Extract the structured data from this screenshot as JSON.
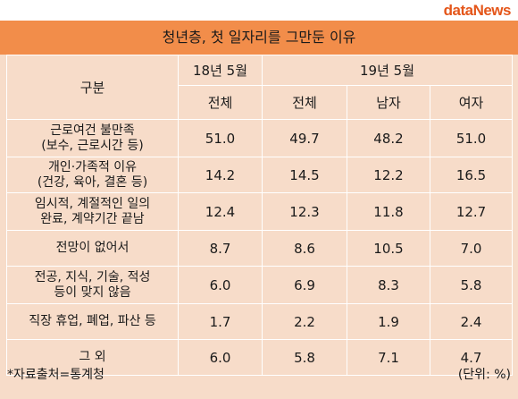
{
  "logo": {
    "prefix": "data",
    "suffix": "News"
  },
  "chart_data": {
    "type": "table",
    "title": "청년층, 첫 일자리를 그만둔 이유",
    "header": {
      "category_label": "구분",
      "period_2018": "18년 5월",
      "period_2019": "19년 5월",
      "sub_2018_total": "전체",
      "sub_2019_total": "전체",
      "sub_2019_male": "남자",
      "sub_2019_female": "여자"
    },
    "rows": [
      {
        "label1": "근로여건 불만족",
        "label2": "(보수, 근로시간 등)",
        "values": [
          "51.0",
          "49.7",
          "48.2",
          "51.0"
        ]
      },
      {
        "label1": "개인·가족적 이유",
        "label2": "(건강, 육아, 결혼 등)",
        "values": [
          "14.2",
          "14.5",
          "12.2",
          "16.5"
        ]
      },
      {
        "label1": "임시적, 계절적인 일의",
        "label2": "완료, 계약기간 끝남",
        "values": [
          "12.4",
          "12.3",
          "11.8",
          "12.7"
        ]
      },
      {
        "label1": "전망이 없어서",
        "label2": "",
        "values": [
          "8.7",
          "8.6",
          "10.5",
          "7.0"
        ]
      },
      {
        "label1": "전공, 지식, 기술, 적성",
        "label2": "등이 맞지 않음",
        "values": [
          "6.0",
          "6.9",
          "8.3",
          "5.8"
        ]
      },
      {
        "label1": "직장 휴업, 폐업, 파산 등",
        "label2": "",
        "values": [
          "1.7",
          "2.2",
          "1.9",
          "2.4"
        ]
      },
      {
        "label1": "그 외",
        "label2": "",
        "values": [
          "6.0",
          "5.8",
          "7.1",
          "4.7"
        ]
      }
    ],
    "source": "*자료출처=통계청",
    "unit": "(단위: %)"
  },
  "colors": {
    "title_bg": "#f28d4a",
    "table_bg": "#f7dcc9",
    "logo": "#e4561a"
  }
}
